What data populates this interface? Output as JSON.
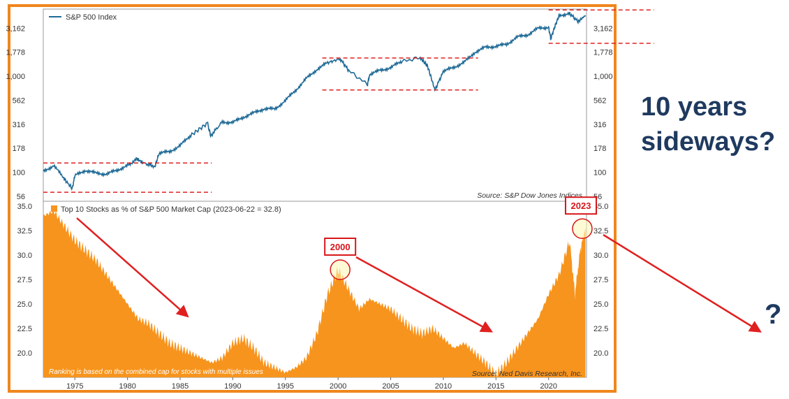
{
  "side_text": {
    "line1": "10 years",
    "line2": "sideways?"
  },
  "question_mark": "?",
  "colors": {
    "index_line": "#1F6A96",
    "area": "#F7941D",
    "dash": "#E02020",
    "arrow": "#E02020",
    "frame": "#F0861E",
    "text_navy": "#1F3A5F"
  },
  "chart_data": [
    {
      "type": "line",
      "legend": "S&P 500 Index",
      "source": "Source:   S&P Dow Jones Indices",
      "scale": "log",
      "yticks": [
        56,
        100,
        178,
        316,
        562,
        1000,
        1778,
        3162
      ],
      "ytick_labels": [
        "56",
        "100",
        "178",
        "316",
        "562",
        "1,000",
        "1,778",
        "3,162"
      ],
      "ylim": [
        50,
        5000
      ],
      "xlim": [
        1972,
        2023.6
      ],
      "x": [
        1972,
        1973,
        1974,
        1974.75,
        1975,
        1976,
        1977,
        1978,
        1979,
        1980,
        1980.9,
        1981.5,
        1982.6,
        1983,
        1984,
        1985,
        1986,
        1987.6,
        1987.9,
        1989,
        1990,
        1991,
        1992,
        1993,
        1994,
        1995,
        1996,
        1997,
        1998,
        1999,
        2000.2,
        2001,
        2002.8,
        2003,
        2004,
        2005,
        2006,
        2007.8,
        2008.5,
        2009.2,
        2010,
        2011,
        2012,
        2013,
        2014,
        2015,
        2016,
        2017,
        2018,
        2019,
        2020,
        2020.2,
        2020.6,
        2021,
        2022,
        2022.8,
        2023.5
      ],
      "values": [
        102,
        118,
        85,
        68,
        92,
        105,
        98,
        96,
        105,
        118,
        138,
        125,
        115,
        158,
        164,
        190,
        242,
        325,
        240,
        335,
        330,
        375,
        415,
        460,
        455,
        560,
        720,
        950,
        1180,
        1380,
        1520,
        1150,
        820,
        1050,
        1150,
        1230,
        1420,
        1560,
        1280,
        720,
        1120,
        1240,
        1400,
        1780,
        2000,
        2050,
        2150,
        2550,
        2700,
        3150,
        3250,
        2450,
        3300,
        4300,
        4500,
        3700,
        4300
      ],
      "annotations": [
        {
          "type": "dashed-range",
          "x_start": 1972,
          "x_end": 1988,
          "y_low": 62,
          "y_high": 125
        },
        {
          "type": "dashed-range",
          "x_start": 1998.5,
          "x_end": 2013.3,
          "y_low": 720,
          "y_high": 1550
        },
        {
          "type": "dashed-range",
          "x_start": 2020,
          "x_end": 2030,
          "y_low": 2200,
          "y_high": 4900
        }
      ]
    },
    {
      "type": "area",
      "legend": "Top 10 Stocks as % of S&P 500 Market Cap (2023-06-22 = 32.8)",
      "source": "Source:   Ned Davis Research, Inc.",
      "note": "Ranking is based on the combined cap for stocks with multiple issues",
      "yticks": [
        20.0,
        22.5,
        25.0,
        27.5,
        30.0,
        32.5,
        35.0
      ],
      "ytick_labels": [
        "20.0",
        "22.5",
        "25.0",
        "27.5",
        "30.0",
        "32.5",
        "35.0"
      ],
      "ylim": [
        17.5,
        35.5
      ],
      "xticks": [
        1975,
        1980,
        1985,
        1990,
        1995,
        2000,
        2005,
        2010,
        2015,
        2020
      ],
      "xtick_labels": [
        "1975",
        "1980",
        "1985",
        "1990",
        "1995",
        "2000",
        "2005",
        "2010",
        "2015",
        "2020"
      ],
      "xlim": [
        1972,
        2023.6
      ],
      "x": [
        1972,
        1973,
        1974,
        1975,
        1976,
        1977,
        1978,
        1979,
        1980,
        1981,
        1982,
        1983,
        1984,
        1985,
        1986,
        1987,
        1988,
        1989,
        1990,
        1991,
        1992,
        1993,
        1994,
        1995,
        1996,
        1997,
        1998,
        1999,
        2000,
        2001,
        2002,
        2003,
        2004,
        2005,
        2006,
        2007,
        2008,
        2009,
        2010,
        2011,
        2012,
        2013,
        2014,
        2015,
        2016,
        2017,
        2018,
        2019,
        2020,
        2021,
        2022,
        2022.5,
        2023,
        2023.5
      ],
      "values": [
        34.0,
        34.5,
        33.0,
        31.5,
        30.5,
        29.5,
        28.0,
        26.5,
        25.0,
        23.5,
        23.0,
        22.0,
        21.0,
        20.5,
        20.0,
        19.5,
        19.0,
        19.5,
        21.0,
        21.5,
        20.5,
        19.0,
        18.5,
        18.0,
        18.5,
        19.5,
        22.0,
        26.0,
        28.5,
        26.5,
        24.5,
        25.5,
        25.0,
        24.5,
        23.5,
        22.5,
        22.0,
        22.5,
        21.5,
        20.5,
        21.0,
        20.0,
        19.0,
        17.8,
        19.0,
        20.5,
        22.0,
        23.5,
        26.0,
        28.0,
        31.5,
        26.0,
        30.5,
        32.8
      ],
      "annotations": [
        {
          "label": "2000",
          "x": 2000.2,
          "y": 28.5
        },
        {
          "label": "2023",
          "x": 2023.2,
          "y": 32.7
        }
      ]
    }
  ]
}
